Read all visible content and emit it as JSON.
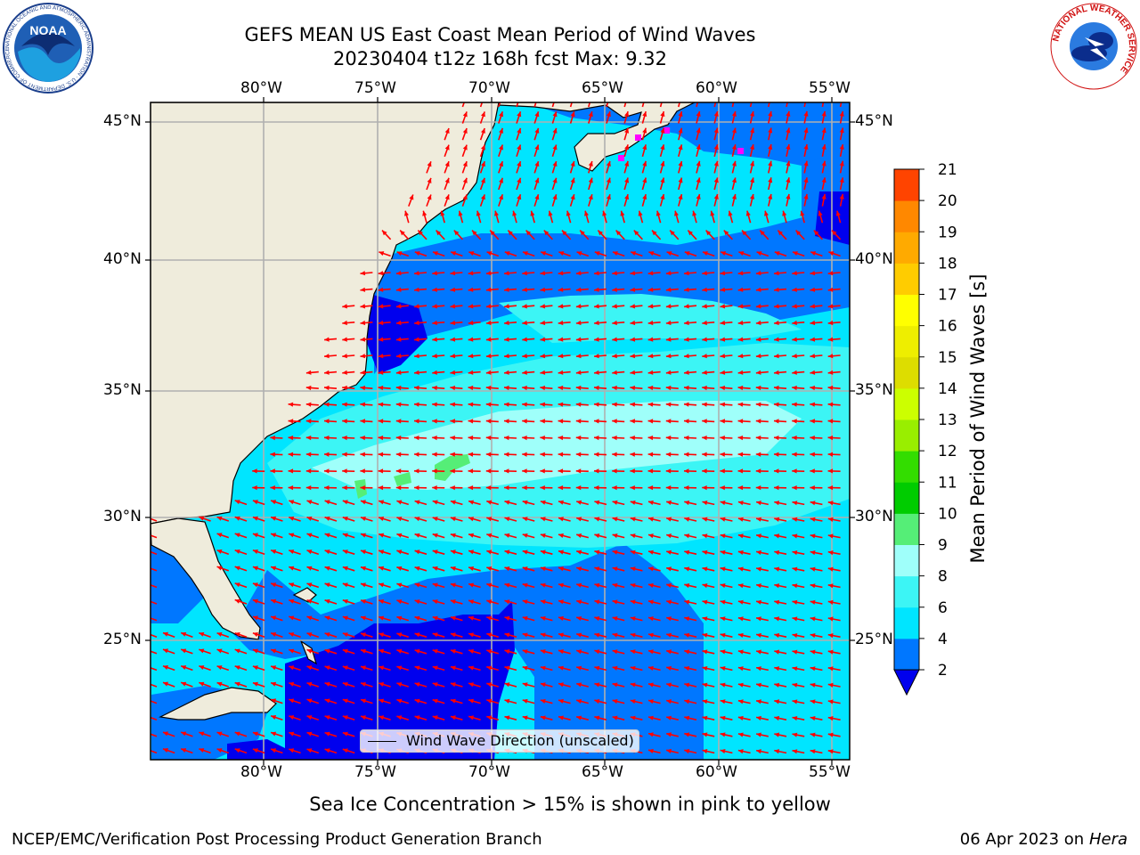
{
  "title_line1": "GEFS MEAN US East Coast Mean Period of Wind Waves",
  "title_line2": "20230404 t12z 168h fcst   Max: 9.32",
  "logos": {
    "left": {
      "icon": "noaa-logo",
      "text": "NOAA",
      "ring_text": "NATIONAL OCEANIC AND ATMOSPHERIC ADMINISTRATION · U.S. DEPARTMENT OF COMMERCE"
    },
    "right": {
      "icon": "nws-logo",
      "ring_text": "NATIONAL WEATHER SERVICE"
    }
  },
  "map": {
    "lon_labels": [
      "80°W",
      "75°W",
      "70°W",
      "65°W",
      "60°W",
      "55°W"
    ],
    "lat_labels": [
      "45°N",
      "40°N",
      "35°N",
      "30°N",
      "25°N"
    ],
    "land_color": "#efecdc",
    "arrow_color": "#ff0000",
    "grid_color": "#b0b0b0",
    "ice_color": "#ff00ff",
    "legend_label": "Wind Wave Direction (unscaled)"
  },
  "colorbar": {
    "label": "Mean Period of Wind Waves [s]",
    "ticks": [
      "2",
      "4",
      "6",
      "8",
      "9",
      "10",
      "11",
      "12",
      "13",
      "14",
      "15",
      "16",
      "17",
      "18",
      "19",
      "20",
      "21"
    ],
    "colors": [
      "#0077ff",
      "#00e5ff",
      "#3cf5f5",
      "#9ffffa",
      "#55ee77",
      "#00cc00",
      "#33dd00",
      "#99ee00",
      "#ccff00",
      "#dddd00",
      "#eeee00",
      "#ffff00",
      "#ffcc00",
      "#ffaa00",
      "#ff8800",
      "#ff4400",
      "#ff2200",
      "#ff0000"
    ],
    "under_color": "#0000ee"
  },
  "note": "Sea Ice Concentration > 15% is shown in pink to yellow",
  "footer_left": "NCEP/EMC/Verification Post Processing Product Generation Branch",
  "footer_right_prefix": "06 Apr 2023 on ",
  "footer_right_host": "Hera"
}
